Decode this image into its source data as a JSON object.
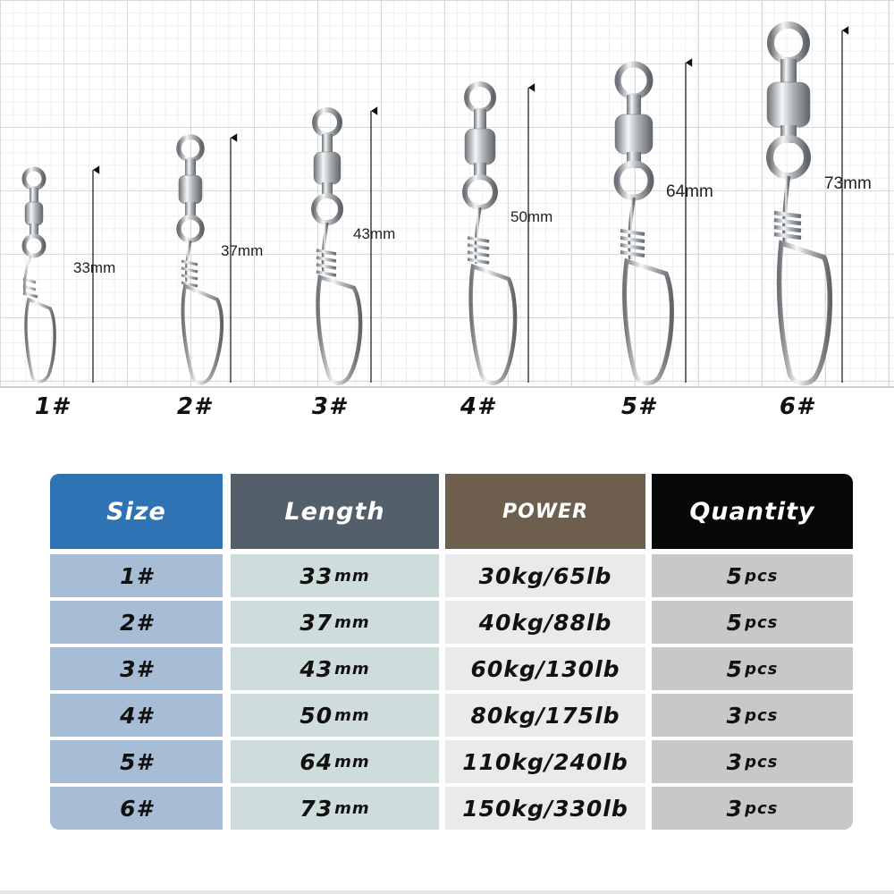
{
  "swivels": [
    {
      "size": "1#",
      "dimension": "33mm"
    },
    {
      "size": "2#",
      "dimension": "37mm"
    },
    {
      "size": "3#",
      "dimension": "43mm"
    },
    {
      "size": "4#",
      "dimension": "50mm"
    },
    {
      "size": "5#",
      "dimension": "64mm"
    },
    {
      "size": "6#",
      "dimension": "73mm"
    }
  ],
  "table": {
    "headers": {
      "size": "Size",
      "length": "Length",
      "power": "POWER",
      "quantity": "Quantity"
    },
    "rows": [
      {
        "size": "1#",
        "length_value": "33",
        "length_unit": "mm",
        "power": "30kg/65lb",
        "qty_value": "5",
        "qty_unit": "pcs"
      },
      {
        "size": "2#",
        "length_value": "37",
        "length_unit": "mm",
        "power": "40kg/88lb",
        "qty_value": "5",
        "qty_unit": "pcs"
      },
      {
        "size": "3#",
        "length_value": "43",
        "length_unit": "mm",
        "power": "60kg/130lb",
        "qty_value": "5",
        "qty_unit": "pcs"
      },
      {
        "size": "4#",
        "length_value": "50",
        "length_unit": "mm",
        "power": "80kg/175lb",
        "qty_value": "3",
        "qty_unit": "pcs"
      },
      {
        "size": "5#",
        "length_value": "64",
        "length_unit": "mm",
        "power": "110kg/240lb",
        "qty_value": "3",
        "qty_unit": "pcs"
      },
      {
        "size": "6#",
        "length_value": "73",
        "length_unit": "mm",
        "power": "150kg/330lb",
        "qty_value": "3",
        "qty_unit": "pcs"
      }
    ]
  },
  "colors": {
    "size_header": "#2f73b5",
    "length_header": "#53606b",
    "power_header": "#6e5e4e",
    "quantity_header": "#070707",
    "size_cell": "#a6bdd5",
    "length_cell": "#cfdcdc",
    "power_cell": "#eaeaea",
    "quantity_cell": "#c8c8c8"
  }
}
